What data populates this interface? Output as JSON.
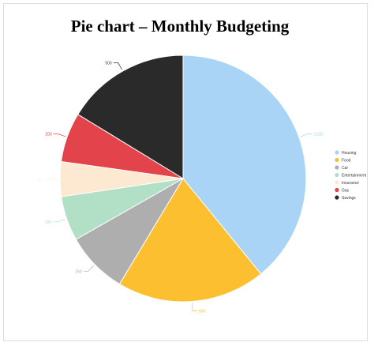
{
  "chart_data": {
    "type": "pie",
    "title": "Pie chart – Monthly Budgeting",
    "series": [
      {
        "name": "Housing",
        "value": 1200,
        "label": "1200",
        "color": "#aad4f6"
      },
      {
        "name": "Food",
        "value": 600,
        "label": "600",
        "color": "#fbbf30"
      },
      {
        "name": "Car",
        "value": 250,
        "label": "250",
        "color": "#aeaeae"
      },
      {
        "name": "Entertainment",
        "value": 180,
        "label": "180",
        "color": "#b2e0c6"
      },
      {
        "name": "Insurance",
        "value": 140,
        "label": "1...",
        "color": "#fde8d2"
      },
      {
        "name": "Gas",
        "value": 200,
        "label": "200",
        "color": "#e3444b"
      },
      {
        "name": "Savings",
        "value": 500,
        "label": "500",
        "color": "#2a2a2a"
      }
    ],
    "start_angle_deg": 0,
    "direction": "clockwise",
    "legend_position": "right",
    "grid": false
  }
}
